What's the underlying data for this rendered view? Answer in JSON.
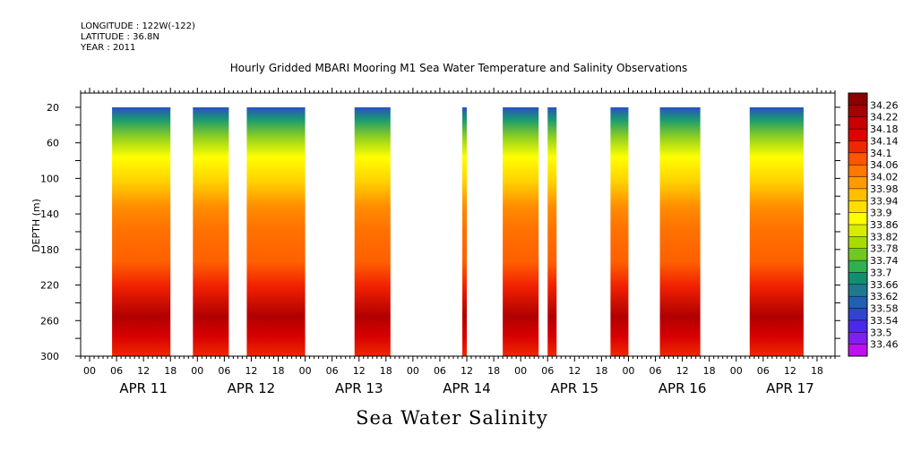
{
  "header": {
    "longitude": "LONGITUDE : 122W(-122)",
    "latitude": "LATITUDE : 36.8N",
    "year": "YEAR : 2011"
  },
  "chart_data": {
    "type": "heatmap",
    "title": "Hourly Gridded MBARI Mooring M1 Sea Water Temperature and Salinity Observations",
    "caption": "Sea Water Salinity",
    "ylabel": "DEPTH (m)",
    "xlabel": "",
    "y_ticks": [
      20,
      60,
      100,
      140,
      180,
      220,
      260,
      300
    ],
    "ylim": [
      300,
      4
    ],
    "x_hour_labels": [
      "00",
      "06",
      "12",
      "18",
      "00",
      "06",
      "12",
      "18",
      "00",
      "06",
      "12",
      "18",
      "00",
      "06",
      "12",
      "18",
      "00",
      "06",
      "12",
      "18",
      "00",
      "06",
      "12",
      "18",
      "00",
      "06",
      "12",
      "18"
    ],
    "x_day_labels": [
      "APR 11",
      "APR 12",
      "APR 13",
      "APR 14",
      "APR 15",
      "APR 16",
      "APR 17"
    ],
    "xlim_hours": [
      -2,
      166
    ],
    "colorbar_levels": [
      "34.26",
      "34.22",
      "34.18",
      "34.14",
      "34.1",
      "34.06",
      "34.02",
      "33.98",
      "33.94",
      "33.9",
      "33.86",
      "33.82",
      "33.78",
      "33.74",
      "33.7",
      "33.66",
      "33.62",
      "33.58",
      "33.54",
      "33.5",
      "33.46"
    ],
    "colorbar_colors": [
      "#8a0000",
      "#a80000",
      "#c80000",
      "#e00000",
      "#f02800",
      "#ff5500",
      "#ff7800",
      "#ff9a00",
      "#ffbe00",
      "#ffde00",
      "#ffff00",
      "#d8ec00",
      "#a8dc00",
      "#70c820",
      "#30b050",
      "#109070",
      "#207890",
      "#2060b0",
      "#3044d0",
      "#4a2ae8",
      "#8020f0",
      "#c010f0"
    ],
    "data_segments_hours": [
      [
        5,
        18
      ],
      [
        23,
        31
      ],
      [
        35,
        48
      ],
      [
        59,
        67
      ],
      [
        83,
        84
      ],
      [
        92,
        100
      ],
      [
        102,
        104
      ],
      [
        116,
        120
      ],
      [
        127,
        136
      ],
      [
        147,
        159
      ]
    ]
  }
}
